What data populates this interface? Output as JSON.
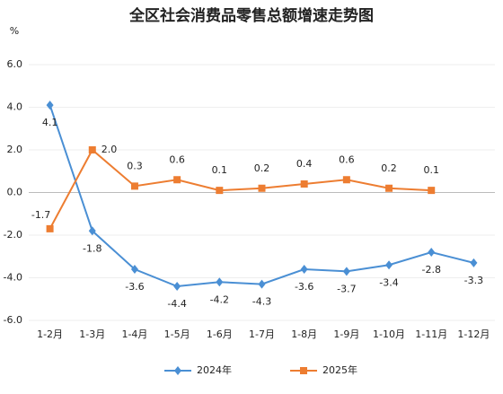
{
  "chart_data": {
    "type": "line",
    "title": "全区社会消费品零售总额增速走势图",
    "y_label": "%",
    "categories": [
      "1-2月",
      "1-3月",
      "1-4月",
      "1-5月",
      "1-6月",
      "1-7月",
      "1-8月",
      "1-9月",
      "1-10月",
      "1-11月",
      "1-12月"
    ],
    "series": [
      {
        "name": "2024年",
        "color": "#4a8fd4",
        "marker": "diamond",
        "values": [
          4.1,
          -1.8,
          -3.6,
          -4.4,
          -4.2,
          -4.3,
          -3.6,
          -3.7,
          -3.4,
          -2.8,
          -3.3
        ]
      },
      {
        "name": "2025年",
        "color": "#ed7d31",
        "marker": "square",
        "values": [
          -1.7,
          2.0,
          0.3,
          0.6,
          0.1,
          0.2,
          0.4,
          0.6,
          0.2,
          0.1,
          null
        ],
        "value_labels": [
          "-1.7",
          "2.0",
          "0.3",
          "0.6",
          "0.1",
          "0.2",
          "0.4",
          "0.6",
          "0.2",
          "0.1",
          null
        ]
      }
    ],
    "ylim": [
      -6,
      6
    ],
    "yticks": [
      {
        "value": -6,
        "label": "-6.0"
      },
      {
        "value": -4,
        "label": "-4.0"
      },
      {
        "value": -2,
        "label": "-2.0"
      },
      {
        "value": 0,
        "label": "0.0"
      },
      {
        "value": 2,
        "label": "2.0"
      },
      {
        "value": 4,
        "label": "4.0"
      },
      {
        "value": 6,
        "label": "6.0"
      }
    ],
    "grid": true,
    "legend": "bottom"
  }
}
